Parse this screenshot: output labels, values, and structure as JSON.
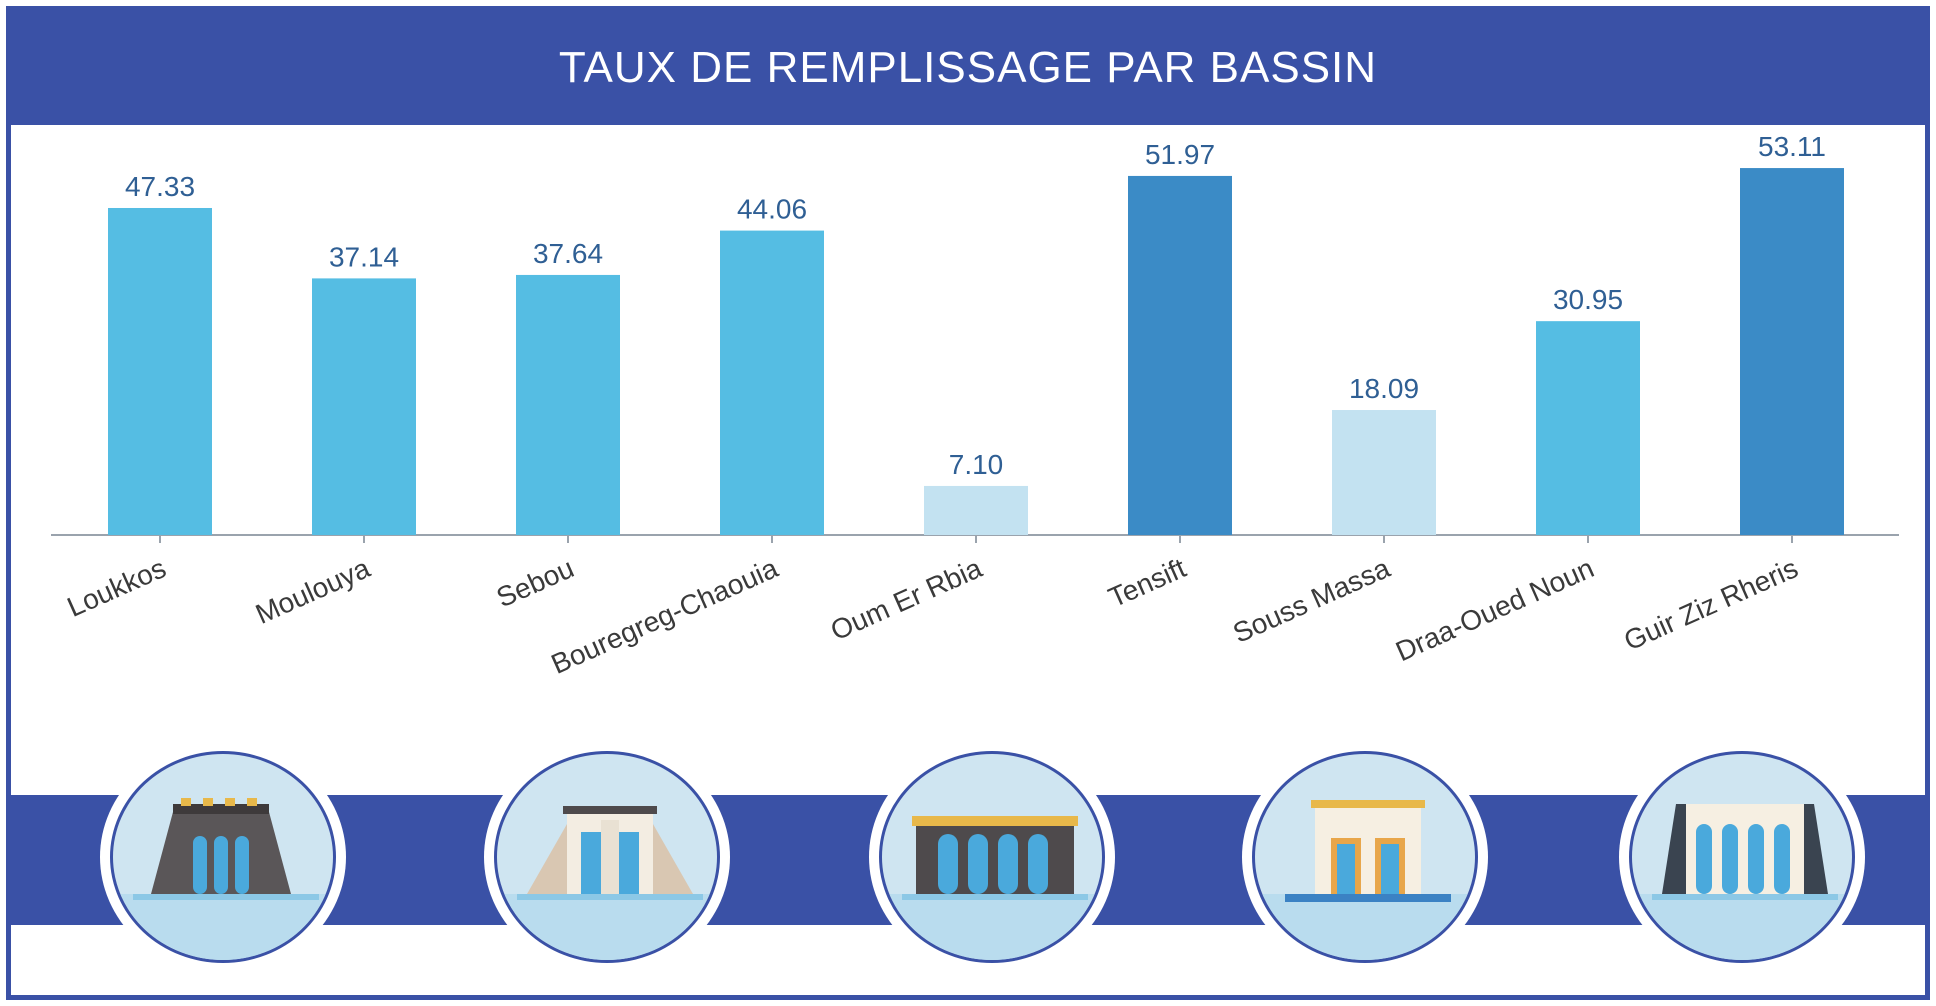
{
  "header": {
    "title": "TAUX DE REMPLISSAGE PAR BASSIN"
  },
  "colors": {
    "header_bg": "#3a51a6",
    "bar_medium": "#55bde3",
    "bar_dark": "#3b8bc6",
    "bar_light": "#c3e2f1",
    "value_label": "#2f5f94",
    "axis": "#9aa3ad"
  },
  "chart_data": {
    "type": "bar",
    "title": "TAUX DE REMPLISSAGE PAR BASSIN",
    "xlabel": "",
    "ylabel": "",
    "ylim": [
      0,
      55
    ],
    "grid": false,
    "categories": [
      "Loukkos",
      "Moulouya",
      "Sebou",
      "Bouregreg-Chaouia",
      "Oum Er Rbia",
      "Tensift",
      "Souss Massa",
      "Draa-Oued Noun",
      "Guir Ziz Rheris"
    ],
    "values": [
      47.33,
      37.14,
      37.64,
      44.06,
      7.1,
      51.97,
      18.09,
      30.95,
      53.11
    ],
    "value_labels": [
      "47.33",
      "37.14",
      "37.64",
      "44.06",
      "7.10",
      "51.97",
      "18.09",
      "30.95",
      "53.11"
    ],
    "bar_colors": [
      "#55bde3",
      "#55bde3",
      "#55bde3",
      "#55bde3",
      "#c3e2f1",
      "#3b8bc6",
      "#c3e2f1",
      "#55bde3",
      "#3b8bc6"
    ]
  },
  "illustrations": [
    {
      "icon": "dark-dam-icon"
    },
    {
      "icon": "light-dam-icon"
    },
    {
      "icon": "arch-dam-icon"
    },
    {
      "icon": "gated-dam-icon"
    },
    {
      "icon": "pillar-dam-icon"
    }
  ]
}
